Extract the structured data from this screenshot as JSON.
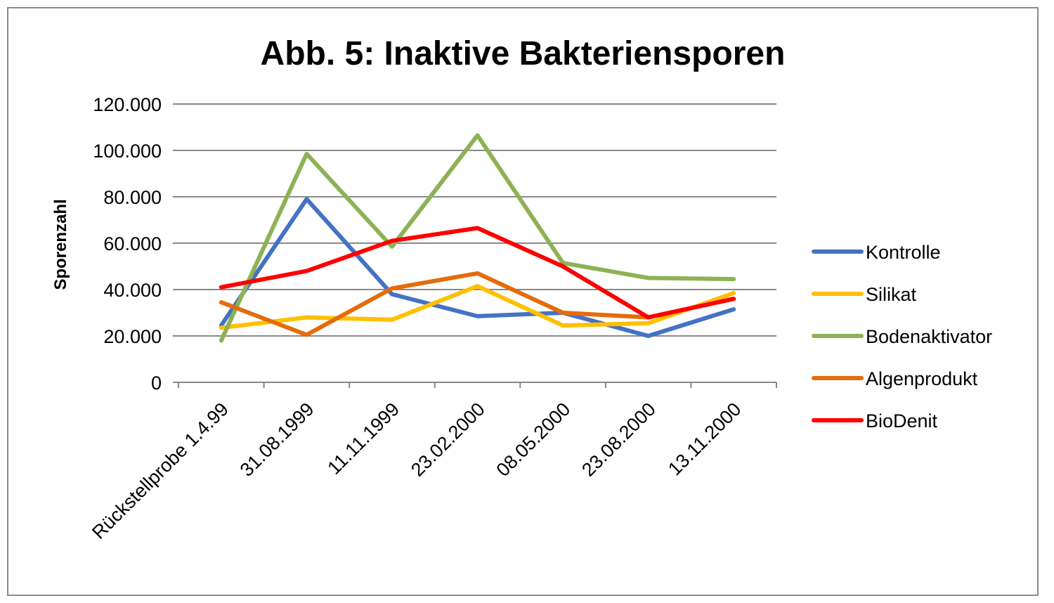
{
  "chart_data": {
    "type": "line",
    "title": "Abb. 5: Inaktive Bakteriensporen",
    "xlabel": "",
    "ylabel": "Sporenzahl",
    "categories": [
      "Rückstellprobe 1.4.99",
      "31.08.1999",
      "11.11.1999",
      "23.02.2000",
      "08.05.2000",
      "23.08.2000",
      "13.11.2000"
    ],
    "ylim": [
      0,
      120000
    ],
    "ytick_values": [
      0,
      20000,
      40000,
      60000,
      80000,
      100000,
      120000
    ],
    "ytick_labels": [
      "0",
      "20.000",
      "40.000",
      "60.000",
      "80.000",
      "100.000",
      "120.000"
    ],
    "grid": "horizontal",
    "legend_position": "right",
    "series": [
      {
        "name": "Kontrolle",
        "color": "#4472C4",
        "values": [
          24500,
          79000,
          38000,
          28500,
          30000,
          20000,
          31500
        ]
      },
      {
        "name": "Silikat",
        "color": "#FFC000",
        "values": [
          23500,
          28000,
          27000,
          41500,
          24500,
          25500,
          38500
        ]
      },
      {
        "name": "Bodenaktivator",
        "color": "#8DB255",
        "values": [
          18000,
          98500,
          58500,
          106500,
          51500,
          45000,
          44500
        ]
      },
      {
        "name": "Algenprodukt",
        "color": "#E46C0A",
        "values": [
          34500,
          20500,
          40500,
          47000,
          30000,
          28000,
          36000
        ]
      },
      {
        "name": "BioDenit",
        "color": "#FF0000",
        "values": [
          41000,
          48000,
          61000,
          66500,
          50000,
          28000,
          36000
        ]
      }
    ]
  }
}
